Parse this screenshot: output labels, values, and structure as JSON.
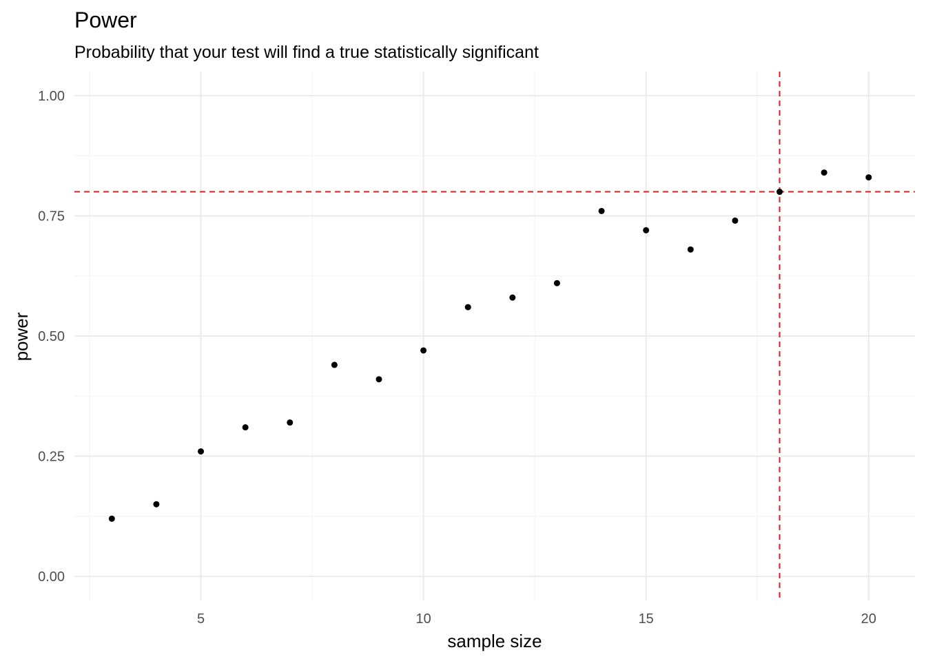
{
  "chart_data": {
    "type": "scatter",
    "title": "Power",
    "subtitle": "Probability that your test will find a true statistically significant",
    "xlabel": "sample size",
    "ylabel": "power",
    "xlim": [
      2.5,
      20.7
    ],
    "ylim": [
      -0.05,
      1.05
    ],
    "x_ticks": [
      5,
      10,
      15,
      20
    ],
    "y_ticks": [
      0.0,
      0.25,
      0.5,
      0.75,
      1.0
    ],
    "x_tick_labels": [
      "5",
      "10",
      "15",
      "20"
    ],
    "y_tick_labels": [
      "0.00",
      "0.25",
      "0.50",
      "0.75",
      "1.00"
    ],
    "grid": true,
    "points": [
      {
        "x": 3,
        "y": 0.12
      },
      {
        "x": 4,
        "y": 0.15
      },
      {
        "x": 5,
        "y": 0.26
      },
      {
        "x": 6,
        "y": 0.31
      },
      {
        "x": 7,
        "y": 0.32
      },
      {
        "x": 8,
        "y": 0.44
      },
      {
        "x": 9,
        "y": 0.41
      },
      {
        "x": 10,
        "y": 0.47
      },
      {
        "x": 11,
        "y": 0.56
      },
      {
        "x": 12,
        "y": 0.58
      },
      {
        "x": 13,
        "y": 0.61
      },
      {
        "x": 14,
        "y": 0.76
      },
      {
        "x": 15,
        "y": 0.72
      },
      {
        "x": 16,
        "y": 0.68
      },
      {
        "x": 17,
        "y": 0.74
      },
      {
        "x": 18,
        "y": 0.8
      },
      {
        "x": 19,
        "y": 0.84
      },
      {
        "x": 20,
        "y": 0.83
      }
    ],
    "reference_lines": {
      "horizontal": {
        "y": 0.8,
        "color": "#e31a1c",
        "style": "dashed"
      },
      "vertical": {
        "x": 18,
        "color": "#e31a1c",
        "style": "dashed"
      }
    },
    "point_color": "#000000"
  }
}
